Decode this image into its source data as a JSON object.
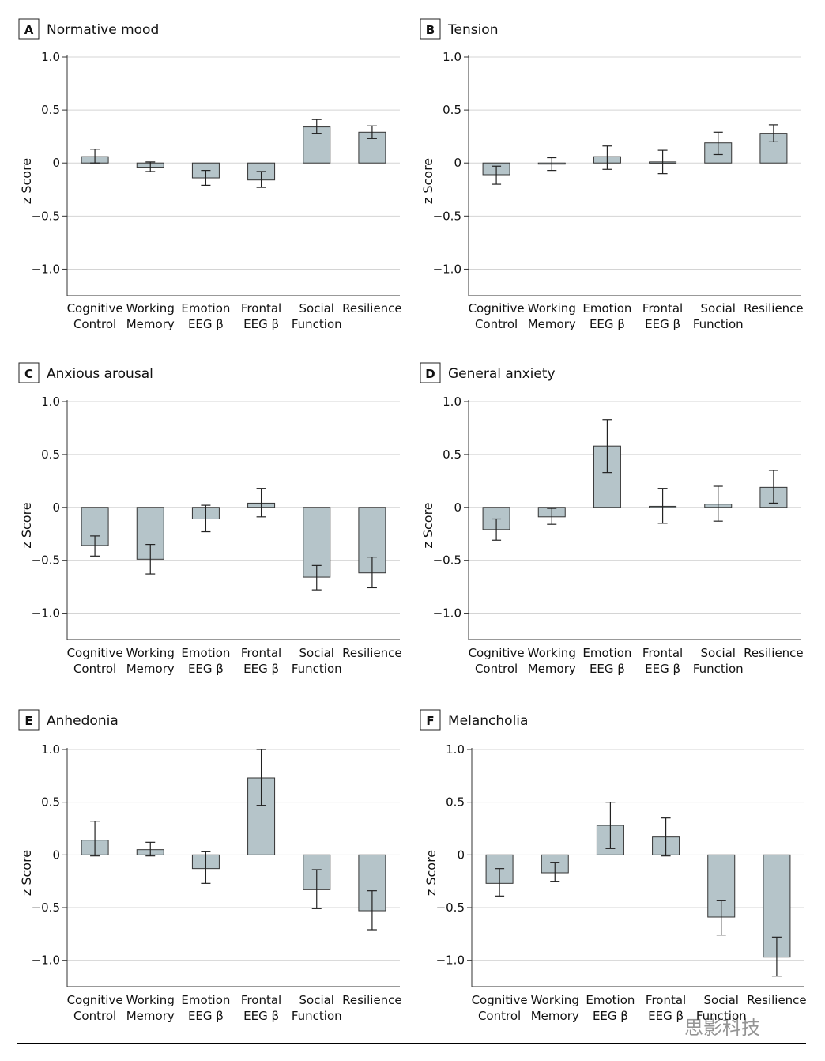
{
  "watermark": "思影科技",
  "chart_data": [
    {
      "type": "bar",
      "panel_letter": "A",
      "title": "Normative mood",
      "ylabel": "z Score",
      "ylim": [
        -1.25,
        1.0
      ],
      "yticks": [
        1.0,
        0.5,
        0,
        -0.5,
        -1.0
      ],
      "ytick_labels": [
        "1.0",
        "0.5",
        "0",
        "−0.5",
        "−1.0"
      ],
      "categories": [
        [
          "Cognitive",
          "Control"
        ],
        [
          "Working",
          "Memory"
        ],
        [
          "Emotion",
          "EEG β"
        ],
        [
          "Frontal",
          "EEG β"
        ],
        [
          "Social",
          "Function"
        ],
        [
          "Resilience"
        ]
      ],
      "values": [
        0.06,
        -0.04,
        -0.14,
        -0.16,
        0.34,
        0.29
      ],
      "error_low": [
        0.0,
        -0.08,
        -0.21,
        -0.23,
        0.28,
        0.23
      ],
      "error_high": [
        0.13,
        0.01,
        -0.07,
        -0.08,
        0.41,
        0.35
      ],
      "bar_color": "#b5c4c9",
      "grid": true
    },
    {
      "type": "bar",
      "panel_letter": "B",
      "title": "Tension",
      "ylabel": "z Score",
      "ylim": [
        -1.25,
        1.0
      ],
      "yticks": [
        1.0,
        0.5,
        0,
        -0.5,
        -1.0
      ],
      "ytick_labels": [
        "1.0",
        "0.5",
        "0",
        "−0.5",
        "−1.0"
      ],
      "categories": [
        [
          "Cognitive",
          "Control"
        ],
        [
          "Working",
          "Memory"
        ],
        [
          "Emotion",
          "EEG β"
        ],
        [
          "Frontal",
          "EEG β"
        ],
        [
          "Social",
          "Function"
        ],
        [
          "Resilience"
        ]
      ],
      "values": [
        -0.11,
        -0.01,
        0.06,
        0.01,
        0.19,
        0.28
      ],
      "error_low": [
        -0.2,
        -0.07,
        -0.06,
        -0.1,
        0.08,
        0.2
      ],
      "error_high": [
        -0.03,
        0.05,
        0.16,
        0.12,
        0.29,
        0.36
      ],
      "bar_color": "#b5c4c9",
      "grid": true
    },
    {
      "type": "bar",
      "panel_letter": "C",
      "title": "Anxious arousal",
      "ylabel": "z Score",
      "ylim": [
        -1.25,
        1.0
      ],
      "yticks": [
        1.0,
        0.5,
        0,
        -0.5,
        -1.0
      ],
      "ytick_labels": [
        "1.0",
        "0.5",
        "0",
        "−0.5",
        "−1.0"
      ],
      "categories": [
        [
          "Cognitive",
          "Control"
        ],
        [
          "Working",
          "Memory"
        ],
        [
          "Emotion",
          "EEG β"
        ],
        [
          "Frontal",
          "EEG β"
        ],
        [
          "Social",
          "Function"
        ],
        [
          "Resilience"
        ]
      ],
      "values": [
        -0.36,
        -0.49,
        -0.11,
        0.04,
        -0.66,
        -0.62
      ],
      "error_low": [
        -0.46,
        -0.63,
        -0.23,
        -0.09,
        -0.78,
        -0.76
      ],
      "error_high": [
        -0.27,
        -0.35,
        0.02,
        0.18,
        -0.55,
        -0.47
      ],
      "bar_color": "#b5c4c9",
      "grid": true
    },
    {
      "type": "bar",
      "panel_letter": "D",
      "title": "General anxiety",
      "ylabel": "z Score",
      "ylim": [
        -1.25,
        1.0
      ],
      "yticks": [
        1.0,
        0.5,
        0,
        -0.5,
        -1.0
      ],
      "ytick_labels": [
        "1.0",
        "0.5",
        "0",
        "−0.5",
        "−1.0"
      ],
      "categories": [
        [
          "Cognitive",
          "Control"
        ],
        [
          "Working",
          "Memory"
        ],
        [
          "Emotion",
          "EEG β"
        ],
        [
          "Frontal",
          "EEG β"
        ],
        [
          "Social",
          "Function"
        ],
        [
          "Resilience"
        ]
      ],
      "values": [
        -0.21,
        -0.09,
        0.58,
        0.01,
        0.03,
        0.19
      ],
      "error_low": [
        -0.31,
        -0.16,
        0.33,
        -0.15,
        -0.13,
        0.04
      ],
      "error_high": [
        -0.11,
        -0.01,
        0.83,
        0.18,
        0.2,
        0.35
      ],
      "bar_color": "#b5c4c9",
      "grid": true
    },
    {
      "type": "bar",
      "panel_letter": "E",
      "title": "Anhedonia",
      "ylabel": "z Score",
      "ylim": [
        -1.25,
        1.0
      ],
      "yticks": [
        1.0,
        0.5,
        0,
        -0.5,
        -1.0
      ],
      "ytick_labels": [
        "1.0",
        "0.5",
        "0",
        "−0.5",
        "−1.0"
      ],
      "categories": [
        [
          "Cognitive",
          "Control"
        ],
        [
          "Working",
          "Memory"
        ],
        [
          "Emotion",
          "EEG β"
        ],
        [
          "Frontal",
          "EEG β"
        ],
        [
          "Social",
          "Function"
        ],
        [
          "Resilience"
        ]
      ],
      "values": [
        0.14,
        0.05,
        -0.13,
        0.73,
        -0.33,
        -0.53
      ],
      "error_low": [
        -0.01,
        -0.01,
        -0.27,
        0.47,
        -0.51,
        -0.71
      ],
      "error_high": [
        0.32,
        0.12,
        0.03,
        1.0,
        -0.14,
        -0.34
      ],
      "bar_color": "#b5c4c9",
      "grid": true
    },
    {
      "type": "bar",
      "panel_letter": "F",
      "title": "Melancholia",
      "ylabel": "z Score",
      "ylim": [
        -1.25,
        1.0
      ],
      "yticks": [
        1.0,
        0.5,
        0,
        -0.5,
        -1.0
      ],
      "ytick_labels": [
        "1.0",
        "0.5",
        "0",
        "−0.5",
        "−1.0"
      ],
      "categories": [
        [
          "Cognitive",
          "Control"
        ],
        [
          "Working",
          "Memory"
        ],
        [
          "Emotion",
          "EEG β"
        ],
        [
          "Frontal",
          "EEG β"
        ],
        [
          "Social",
          "Function"
        ],
        [
          "Resilience"
        ]
      ],
      "values": [
        -0.27,
        -0.17,
        0.28,
        0.17,
        -0.59,
        -0.97
      ],
      "error_low": [
        -0.39,
        -0.25,
        0.06,
        -0.01,
        -0.76,
        -1.15
      ],
      "error_high": [
        -0.13,
        -0.07,
        0.5,
        0.35,
        -0.43,
        -0.78
      ],
      "bar_color": "#b5c4c9",
      "grid": true
    }
  ]
}
